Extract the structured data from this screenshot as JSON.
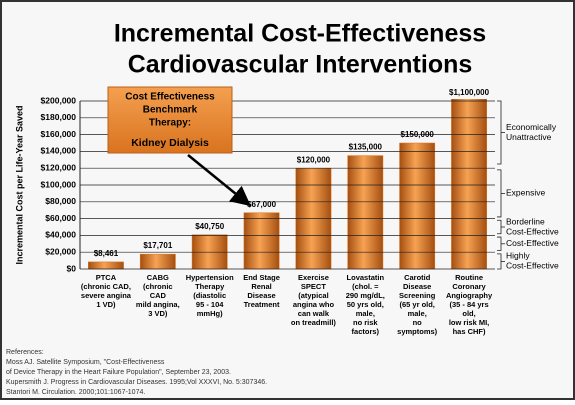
{
  "chart_data": {
    "type": "bar",
    "title": [
      "Incremental Cost-Effectiveness",
      "Cardiovascular Interventions"
    ],
    "y_label": "Incremental Cost per Life-Year Saved",
    "categories": [
      [
        "PTCA",
        "(chronic CAD,",
        "severe angina",
        "1 VD)"
      ],
      [
        "CABG",
        "(chronic",
        "CAD",
        "mild angina,",
        "3 VD)"
      ],
      [
        "Hypertension",
        "Therapy",
        "(diastolic",
        "95 - 104",
        "mmHg)"
      ],
      [
        "End Stage",
        "Renal",
        "Disease",
        "Treatment"
      ],
      [
        "Exercise",
        "SPECT",
        "(atypical",
        "angina who",
        "can walk",
        "on treadmill)"
      ],
      [
        "Lovastatin",
        "(chol. =",
        "290 mg/dL,",
        "50 yrs old,",
        "male,",
        "no risk",
        "factors)"
      ],
      [
        "Carotid",
        "Disease",
        "Screening",
        "(65 yr old,",
        "male,",
        "no",
        "symptoms)"
      ],
      [
        "Routine",
        "Coronary",
        "Angiography",
        "(35 - 84 yrs",
        "old,",
        "low risk MI,",
        "has CHF)"
      ]
    ],
    "values": [
      8461,
      17701,
      40750,
      67000,
      120000,
      135000,
      150000,
      1100000
    ],
    "value_labels": [
      "$8,461",
      "$17,701",
      "$40,750",
      "$67,000",
      "$120,000",
      "$135,000",
      "$150,000",
      "$1,100,000"
    ],
    "color": "#d9731f",
    "ylim": [
      0,
      200000
    ],
    "yticks": [
      {
        "value": 0,
        "label": "$0"
      },
      {
        "value": 20000,
        "label": "$20,000"
      },
      {
        "value": 40000,
        "label": "$40,000"
      },
      {
        "value": 60000,
        "label": "$60,000"
      },
      {
        "value": 80000,
        "label": "$80,000"
      },
      {
        "value": 100000,
        "label": "$100,000"
      },
      {
        "value": 120000,
        "label": "$120,000"
      },
      {
        "value": 140000,
        "label": "$140,000"
      },
      {
        "value": 160000,
        "label": "$160,000"
      },
      {
        "value": 180000,
        "label": "$180,000"
      },
      {
        "value": 200000,
        "label": "$200,000"
      }
    ],
    "grid": true,
    "bands": [
      {
        "label": [
          "Economically",
          "Unattractive"
        ],
        "range": [
          125000,
          200000
        ]
      },
      {
        "label": [
          "Expensive"
        ],
        "range": [
          62000,
          118000
        ]
      },
      {
        "label": [
          "Borderline",
          "Cost-Effective"
        ],
        "range": [
          42000,
          58000
        ]
      },
      {
        "label": [
          "Cost-Effective"
        ],
        "range": [
          22000,
          38000
        ]
      },
      {
        "label": [
          "Highly",
          "Cost-Effective"
        ],
        "range": [
          0,
          18000
        ]
      }
    ],
    "callout": {
      "heading": [
        "Cost Effectiveness",
        "Benchmark",
        "Therapy:"
      ],
      "therapy": "Kidney Dialysis"
    },
    "references": [
      "References:",
      "Moss AJ.  Satellite Symposium, \"Cost-Effectiveness",
      "of Device Therapy in the Heart Failure Population\", September 23, 2003.",
      "Kupersmith J. Progress in Cardiovascular Diseases. 1995;Vol XXXVI, No. 5:307346.",
      "Stantori M. Circulation. 2000;101:1067-1074."
    ]
  }
}
